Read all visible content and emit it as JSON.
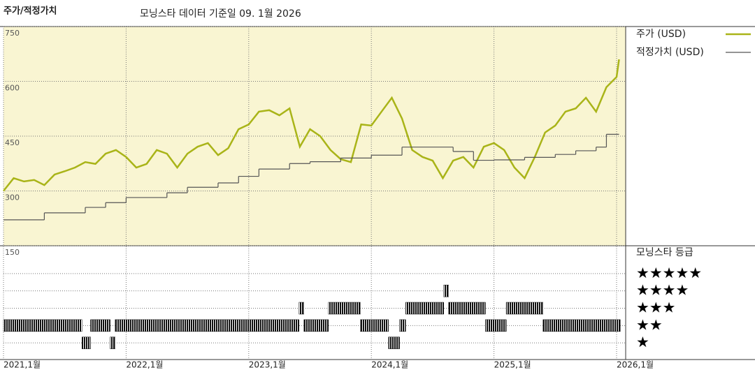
{
  "chart_data": [
    {
      "type": "line",
      "title": "주가/적정가치",
      "subtitle": "모닝스타 데이터 기준일 09. 1월 2026",
      "xlim": [
        2021,
        2026.0741
      ],
      "ylim": [
        150,
        750
      ],
      "xticks": [
        {
          "value": 2021,
          "label": "2021,1월"
        },
        {
          "value": 2022,
          "label": "2022,1월"
        },
        {
          "value": 2023,
          "label": "2023,1월"
        },
        {
          "value": 2024,
          "label": "2024,1월"
        },
        {
          "value": 2025,
          "label": "2025,1월"
        },
        {
          "value": 2026,
          "label": "2026,1월"
        }
      ],
      "yticks": [
        150,
        300,
        450,
        600,
        750
      ],
      "grid": true,
      "background": "#f9f5d2",
      "series": [
        {
          "name": "주가 (USD)",
          "color": "#a9b418",
          "style": "line",
          "x": [
            2021,
            2021.083,
            2021.167,
            2021.25,
            2021.333,
            2021.417,
            2021.5,
            2021.583,
            2021.667,
            2021.75,
            2021.833,
            2021.917,
            2022,
            2022.083,
            2022.167,
            2022.25,
            2022.333,
            2022.417,
            2022.5,
            2022.583,
            2022.667,
            2022.75,
            2022.833,
            2022.917,
            2023,
            2023.083,
            2023.167,
            2023.25,
            2023.333,
            2023.417,
            2023.5,
            2023.583,
            2023.667,
            2023.75,
            2023.833,
            2023.917,
            2024,
            2024.083,
            2024.167,
            2024.25,
            2024.333,
            2024.417,
            2024.5,
            2024.583,
            2024.667,
            2024.75,
            2024.833,
            2024.917,
            2025,
            2025.083,
            2025.167,
            2025.25,
            2025.333,
            2025.417,
            2025.5,
            2025.583,
            2025.667,
            2025.75,
            2025.833,
            2025.917,
            2026,
            2026.02
          ],
          "values": [
            300,
            335,
            326,
            330,
            316,
            345,
            354,
            364,
            379,
            374,
            402,
            412,
            393,
            364,
            374,
            412,
            402,
            364,
            402,
            421,
            431,
            398,
            417,
            469,
            482,
            517,
            521,
            507,
            526,
            421,
            469,
            450,
            412,
            387,
            379,
            482,
            479,
            517,
            555,
            498,
            412,
            393,
            383,
            335,
            383,
            393,
            364,
            421,
            431,
            412,
            364,
            335,
            393,
            460,
            479,
            517,
            526,
            555,
            517,
            584,
            612,
            660
          ]
        },
        {
          "name": "적정가치 (USD)",
          "color": "#555555",
          "style": "step",
          "x": [
            2021,
            2021.333,
            2021.667,
            2021.833,
            2022,
            2022.333,
            2022.5,
            2022.75,
            2022.917,
            2023.083,
            2023.333,
            2023.5,
            2023.75,
            2024,
            2024.25,
            2024.667,
            2024.833,
            2025,
            2025.25,
            2025.5,
            2025.667,
            2025.833,
            2025.917,
            2026.02
          ],
          "values": [
            221,
            240,
            255,
            268,
            282,
            295,
            310,
            322,
            340,
            360,
            375,
            380,
            390,
            398,
            420,
            408,
            384,
            385,
            392,
            400,
            410,
            420,
            455,
            455
          ]
        }
      ]
    },
    {
      "type": "rating",
      "title": "모닝스타 등급",
      "color": "#111111",
      "ylim": [
        0,
        6
      ],
      "yticks": [
        {
          "value": 5,
          "label": "★★★★★"
        },
        {
          "value": 4,
          "label": "★★★★"
        },
        {
          "value": 3,
          "label": "★★★"
        },
        {
          "value": 2,
          "label": "★★"
        },
        {
          "value": 1,
          "label": "★"
        }
      ],
      "start": [
        2021,
        2021.64,
        2021.71,
        2021.87,
        2021.91,
        2023.41,
        2023.45,
        2023.65,
        2023.91,
        2024.14,
        2024.23,
        2024.28,
        2024.59,
        2024.63,
        2024.93,
        2025.1,
        2025.4
      ],
      "end": [
        2021.64,
        2021.71,
        2021.87,
        2021.91,
        2023.41,
        2023.45,
        2023.65,
        2023.91,
        2024.14,
        2024.23,
        2024.28,
        2024.59,
        2024.63,
        2024.93,
        2025.1,
        2025.4,
        2026.03
      ],
      "values": [
        2,
        1,
        2,
        1,
        2,
        3,
        2,
        3,
        2,
        1,
        2,
        3,
        4,
        3,
        2,
        3,
        2
      ]
    }
  ]
}
